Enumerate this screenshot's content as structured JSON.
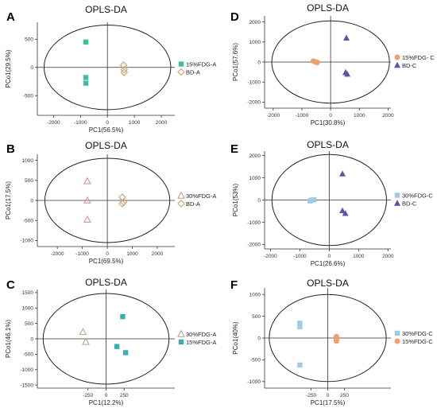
{
  "panels": [
    {
      "letter": "A",
      "chart_data": {
        "type": "scatter",
        "title": "OPLS-DA",
        "xlabel": "PC1(56.5%)",
        "ylabel": "PCo1(29.5%)",
        "xlim": [
          -2600,
          2500
        ],
        "ylim": [
          -850,
          800
        ],
        "xticks": [
          -2000,
          -1000,
          0,
          1000,
          2000
        ],
        "yticks": [
          -500,
          0,
          500
        ],
        "ellipse": {
          "rx": 2350,
          "ry": 750
        },
        "legend_position": "right",
        "series": [
          {
            "name": "15%FDG-A",
            "marker": "square",
            "color": "#3dbfa0",
            "points": [
              [
                -800,
                450
              ],
              [
                -800,
                -180
              ],
              [
                -800,
                -280
              ]
            ]
          },
          {
            "name": "BD-A",
            "marker": "diamond",
            "color": "#c8a978",
            "points": [
              [
                600,
                40
              ],
              [
                620,
                -40
              ],
              [
                620,
                -90
              ]
            ]
          }
        ]
      }
    },
    {
      "letter": "D",
      "chart_data": {
        "type": "scatter",
        "title": "OPLS-DA",
        "xlabel": "PC1(30.8%)",
        "ylabel": "PCo1(57.6%)",
        "xlim": [
          -2300,
          2100
        ],
        "ylim": [
          -2300,
          2300
        ],
        "xticks": [
          -2000,
          -1000,
          0,
          1000,
          2000
        ],
        "yticks": [
          -2000,
          -1000,
          0,
          1000,
          2000
        ],
        "ellipse": {
          "rx": 2050,
          "ry": 2050
        },
        "legend_position": "right",
        "series": [
          {
            "name": "15%FDG- C",
            "marker": "circle",
            "color": "#f0a070",
            "points": [
              [
                -600,
                50
              ],
              [
                -520,
                0
              ],
              [
                -470,
                -20
              ]
            ]
          },
          {
            "name": "BD-C",
            "marker": "triangle",
            "color": "#5a55a8",
            "points": [
              [
                550,
                1200
              ],
              [
                520,
                -520
              ],
              [
                580,
                -600
              ]
            ]
          }
        ]
      }
    },
    {
      "letter": "B",
      "chart_data": {
        "type": "scatter",
        "title": "OPLS-DA",
        "xlabel": "PC1(69.5%)",
        "ylabel": "PCo1(17.5%)",
        "xlim": [
          -2800,
          2700
        ],
        "ylim": [
          -1150,
          1150
        ],
        "xticks": [
          -2000,
          -1000,
          0,
          1000,
          2000
        ],
        "yticks": [
          -1000,
          -500,
          0,
          500,
          1000
        ],
        "ellipse": {
          "rx": 2500,
          "ry": 1050
        },
        "legend_position": "right",
        "series": [
          {
            "name": "30%FDG-A",
            "marker": "triangle-open",
            "color": "#d48a9a",
            "points": [
              [
                -800,
                480
              ],
              [
                -800,
                0
              ],
              [
                -800,
                -480
              ]
            ]
          },
          {
            "name": "BD-A",
            "marker": "diamond",
            "color": "#c8a978",
            "points": [
              [
                600,
                80
              ],
              [
                650,
                -40
              ],
              [
                600,
                -80
              ]
            ]
          }
        ]
      }
    },
    {
      "letter": "E",
      "chart_data": {
        "type": "scatter",
        "title": "OPLS-DA",
        "xlabel": "PC1(26.6%)",
        "ylabel": "PCo1(53%)",
        "xlim": [
          -2200,
          2100
        ],
        "ylim": [
          -2200,
          2200
        ],
        "xticks": [
          -2000,
          -1000,
          0,
          1000,
          2000
        ],
        "yticks": [
          -2000,
          -1000,
          0,
          1000,
          2000
        ],
        "ellipse": {
          "rx": 1950,
          "ry": 2050
        },
        "legend_position": "right",
        "series": [
          {
            "name": "30%FDG-C",
            "marker": "square",
            "color": "#9fcbe3",
            "points": [
              [
                -650,
                -40
              ],
              [
                -600,
                0
              ],
              [
                -520,
                10
              ]
            ]
          },
          {
            "name": "BD-C",
            "marker": "triangle",
            "color": "#5a55a8",
            "points": [
              [
                450,
                1180
              ],
              [
                450,
                -480
              ],
              [
                550,
                -600
              ]
            ]
          }
        ]
      }
    },
    {
      "letter": "C",
      "chart_data": {
        "type": "scatter",
        "title": "OPLS-DA",
        "xlabel": "PC1(12.2%)",
        "ylabel": "PCo1(46.1%)",
        "xlim": [
          -950,
          950
        ],
        "ylim": [
          -1600,
          1600
        ],
        "xticks": [
          -250,
          0,
          250
        ],
        "yticks": [
          -1500,
          -1000,
          -500,
          0,
          500,
          1000,
          1500
        ],
        "ellipse": {
          "rx": 870,
          "ry": 1470
        },
        "legend_position": "right",
        "series": [
          {
            "name": "30%FDG-A",
            "marker": "triangle-open",
            "color": "#b0a090",
            "points": [
              [
                -320,
                220
              ],
              [
                -280,
                -100
              ]
            ]
          },
          {
            "name": "15%FDG-A",
            "marker": "square",
            "color": "#3daab4",
            "points": [
              [
                150,
                -250
              ],
              [
                230,
                720
              ],
              [
                270,
                -450
              ]
            ]
          }
        ]
      }
    },
    {
      "letter": "F",
      "chart_data": {
        "type": "scatter",
        "title": "OPLS-DA",
        "xlabel": "PC1(17.5%)",
        "ylabel": "PCo1(40%)",
        "xlim": [
          -950,
          950
        ],
        "ylim": [
          -1150,
          1150
        ],
        "xticks": [
          -250,
          0,
          250
        ],
        "yticks": [
          -1000,
          -500,
          0,
          500,
          1000
        ],
        "ellipse": {
          "rx": 880,
          "ry": 1000
        },
        "legend_position": "right",
        "series": [
          {
            "name": "30%FDG-C",
            "marker": "square",
            "color": "#9fcbe3",
            "points": [
              [
                -420,
                340
              ],
              [
                -420,
                260
              ],
              [
                -420,
                -620
              ]
            ]
          },
          {
            "name": "15%FDG-C",
            "marker": "circle",
            "color": "#f0a070",
            "points": [
              [
                130,
                30
              ],
              [
                130,
                -20
              ],
              [
                130,
                -70
              ]
            ]
          }
        ]
      }
    }
  ]
}
